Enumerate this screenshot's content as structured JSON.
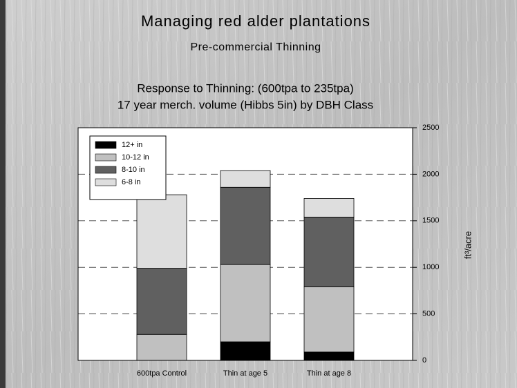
{
  "chart_data": {
    "type": "stacked-bar",
    "title": "Managing red alder plantations",
    "subtitle": "Pre-commercial Thinning",
    "chart_title": [
      "Response to Thinning: (600tpa to 235tpa)",
      "17 year merch. volume (Hibbs 5in) by DBH Class"
    ],
    "y_label": "ft³/acre",
    "categories": [
      "600tpa Control",
      "Thin at age 5",
      "Thin at age 8"
    ],
    "series": [
      {
        "name": "12+ in",
        "color": "#000000",
        "values": [
          0,
          200,
          90
        ]
      },
      {
        "name": "10-12 in",
        "color": "#c0c0c0",
        "values": [
          280,
          830,
          700
        ]
      },
      {
        "name": "8-10 in",
        "color": "#606060",
        "values": [
          710,
          830,
          750
        ]
      },
      {
        "name": "6-8 in",
        "color": "#dedede",
        "values": [
          790,
          180,
          200
        ]
      }
    ],
    "ylim": [
      0,
      2500
    ],
    "yticks": [
      0,
      500,
      1000,
      1500,
      2000,
      2500
    ],
    "grid": true,
    "legend": "upper-left"
  }
}
